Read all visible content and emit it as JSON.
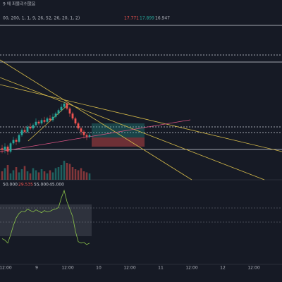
{
  "chart_data": {
    "type": "candlestick",
    "publish_note": "9 에 퍼블리쉬했음",
    "indicator_params": "00, 200, 1, 1, 9, 26, 52, 26, 20, 1, 2)",
    "indicator_values": [
      {
        "text": "17.771",
        "color": "#ef5350"
      },
      {
        "text": "17.899",
        "color": "#26a69a"
      },
      {
        "text": "16.947",
        "color": "#b2b5be"
      }
    ],
    "oscillator_values": [
      {
        "text": "50.000",
        "color": "#d1d4dc"
      },
      {
        "text": "29.535",
        "color": "#ef5350"
      },
      {
        "text": "55.000",
        "color": "#d1d4dc"
      },
      {
        "text": "45.000",
        "color": "#d1d4dc"
      }
    ],
    "x_labels": [
      "12:00",
      "9",
      "12:00",
      "10",
      "12:00",
      "11",
      "12:00",
      "12",
      "12:00"
    ],
    "ylim": [
      0,
      100
    ],
    "open": [
      19,
      18,
      20,
      17,
      22,
      24,
      23,
      27,
      30,
      29,
      32,
      31,
      33,
      35,
      34,
      36,
      35,
      37,
      36,
      38,
      40,
      42,
      44,
      46,
      43,
      40,
      37,
      34,
      31,
      29,
      27,
      26
    ],
    "close": [
      18,
      20,
      17,
      22,
      24,
      23,
      27,
      30,
      29,
      32,
      31,
      33,
      35,
      34,
      36,
      35,
      37,
      36,
      38,
      40,
      42,
      44,
      46,
      43,
      40,
      37,
      34,
      31,
      29,
      27,
      26,
      27
    ],
    "high": [
      21,
      22,
      21,
      23,
      26,
      25,
      28,
      31,
      32,
      33,
      34,
      34,
      37,
      36,
      37,
      38,
      38,
      39,
      40,
      41,
      43,
      46,
      47,
      47,
      44,
      41,
      38,
      35,
      32,
      30,
      28,
      29
    ],
    "low": [
      16,
      16,
      15,
      16,
      21,
      21,
      22,
      26,
      28,
      28,
      30,
      30,
      32,
      33,
      33,
      34,
      34,
      35,
      35,
      37,
      39,
      41,
      43,
      42,
      38,
      36,
      33,
      30,
      27,
      25,
      24,
      25
    ],
    "volume": [
      40,
      55,
      70,
      30,
      45,
      60,
      35,
      50,
      65,
      40,
      30,
      55,
      45,
      35,
      50,
      40,
      30,
      45,
      35,
      55,
      60,
      70,
      90,
      80,
      75,
      60,
      50,
      45,
      55,
      40,
      35,
      30
    ],
    "oscillator_ylim": [
      0,
      100
    ],
    "oscillator": [
      30,
      28,
      24,
      35,
      48,
      58,
      64,
      67,
      66,
      70,
      68,
      66,
      69,
      67,
      65,
      68,
      66,
      67,
      69,
      70,
      72,
      85,
      95,
      80,
      70,
      60,
      40,
      26,
      24,
      25,
      22,
      24
    ],
    "up_color": "#26a69a",
    "down_color": "#ef5350"
  }
}
